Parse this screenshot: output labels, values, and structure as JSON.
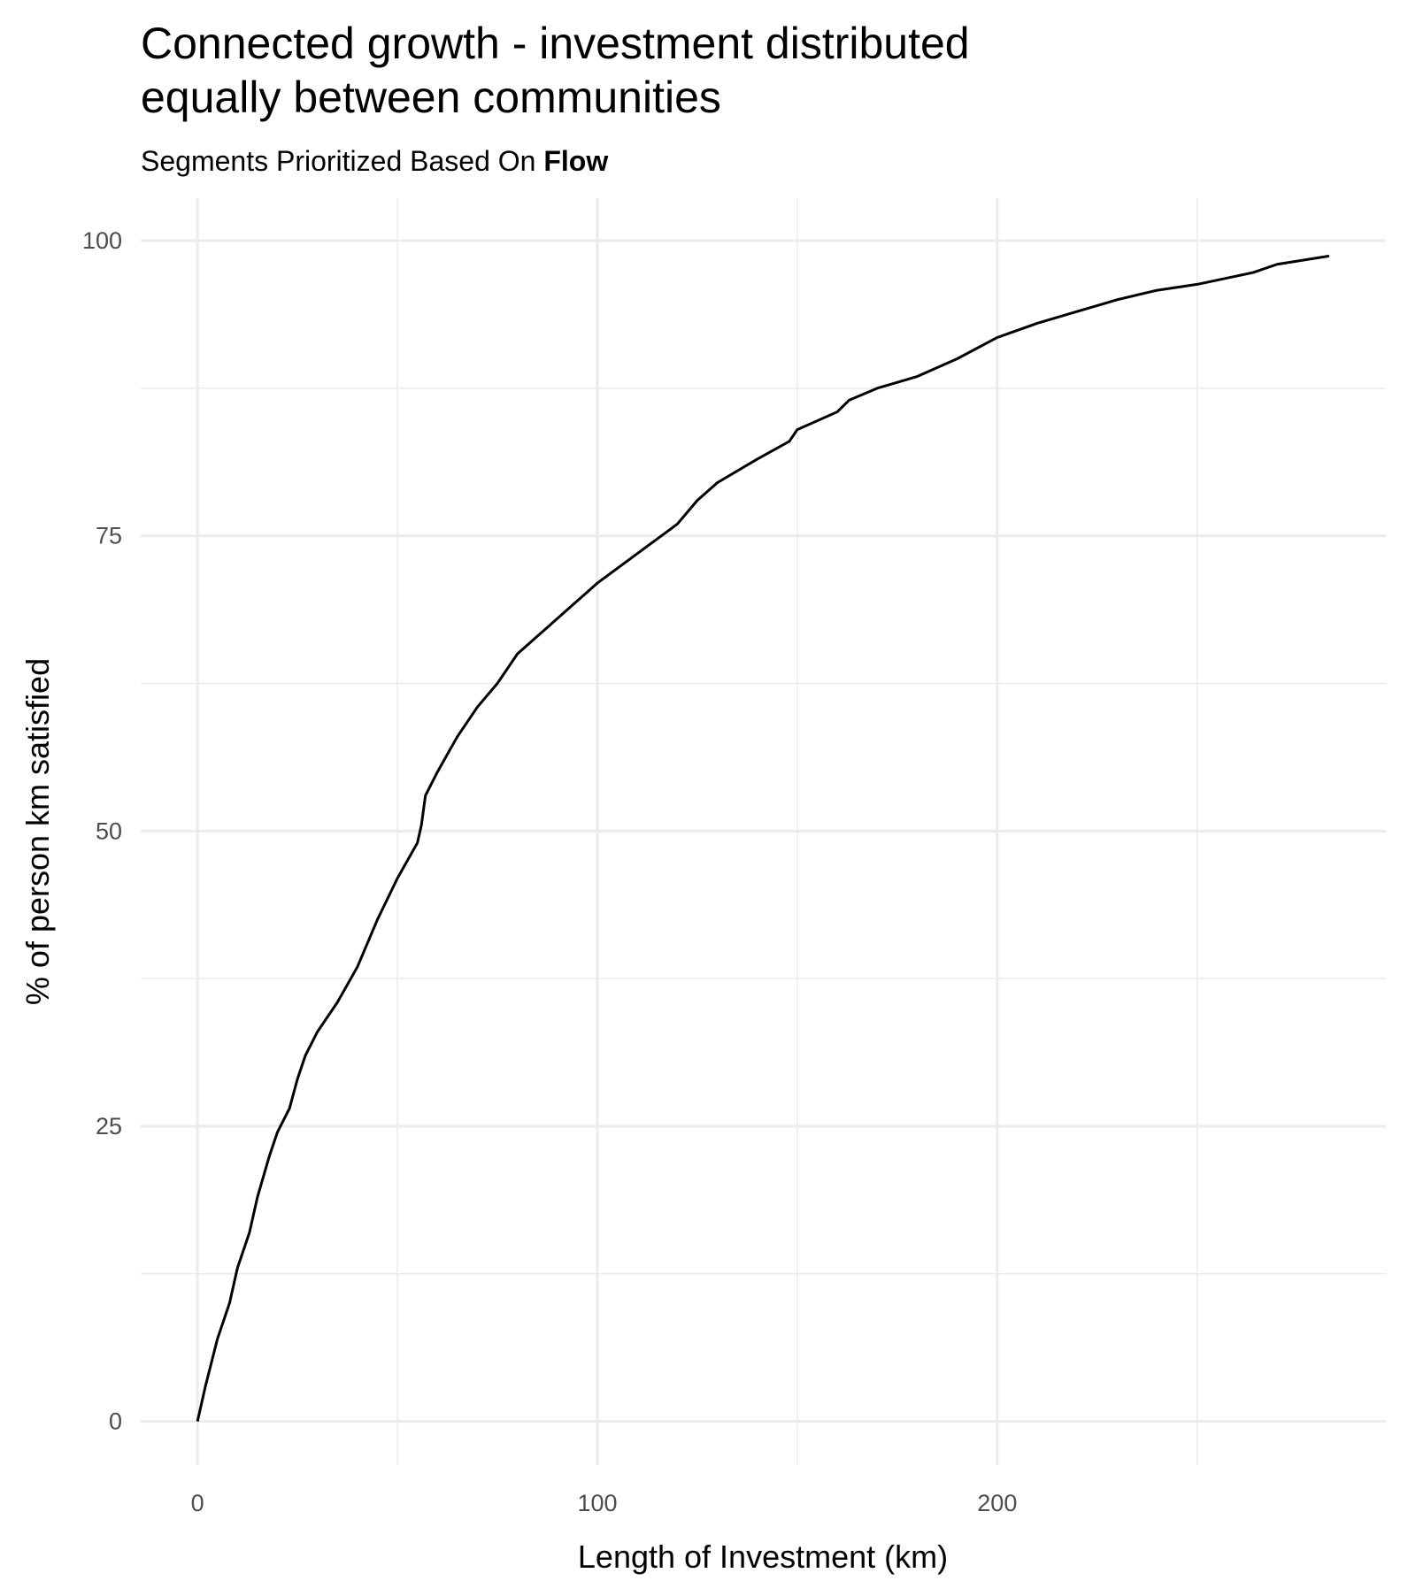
{
  "chart_data": {
    "type": "line",
    "title": [
      "Connected growth - investment distributed",
      "equally between communities"
    ],
    "subtitle": {
      "text": "Segments Prioritized Based On",
      "emphasis": "Flow"
    },
    "x_label": "Length of Investment (km)",
    "y_label": "% of person km satisfied",
    "x": [
      0,
      2,
      5,
      8,
      10,
      13,
      15,
      18,
      20,
      23,
      25,
      27,
      30,
      35,
      40,
      45,
      50,
      55,
      56,
      57,
      60,
      65,
      70,
      75,
      80,
      90,
      100,
      110,
      120,
      125,
      130,
      140,
      148,
      150,
      160,
      163,
      170,
      180,
      190,
      200,
      210,
      220,
      230,
      240,
      250,
      264,
      270,
      283
    ],
    "series": [
      {
        "name": "Connected growth",
        "color": "#000000",
        "values": [
          0,
          3,
          7,
          10,
          13,
          16,
          19,
          22.5,
          24.5,
          26.5,
          29,
          31,
          33,
          35.5,
          38.5,
          42.5,
          46,
          49,
          50.5,
          53,
          55,
          58,
          60.5,
          62.5,
          65,
          68,
          71,
          73.5,
          76,
          78,
          79.5,
          81.5,
          83,
          84,
          85.5,
          86.5,
          87.5,
          88.5,
          90,
          91.8,
          93,
          94,
          95,
          95.8,
          96.3,
          97.3,
          98,
          98.7
        ]
      }
    ],
    "xlim": [
      -14.2,
      297.2
    ],
    "ylim": [
      -3.7,
      103.6
    ],
    "xticks": [
      0,
      100,
      200
    ],
    "yticks": [
      0,
      25,
      50,
      75,
      100
    ],
    "grid": true
  }
}
